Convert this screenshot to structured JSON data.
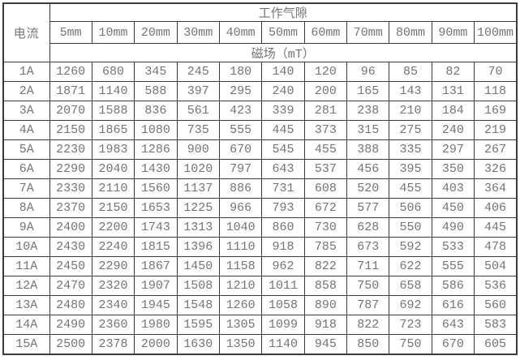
{
  "table": {
    "corner_header": "电流",
    "top_header": "工作气隙",
    "gap_columns": [
      "5mm",
      "10mm",
      "20mm",
      "30mm",
      "40mm",
      "50mm",
      "60mm",
      "70mm",
      "80mm",
      "90mm",
      "100mm"
    ],
    "field_header": "磁场（mT）",
    "rows": [
      {
        "current": "1A",
        "values": [
          1260,
          680,
          345,
          245,
          180,
          140,
          120,
          96,
          85,
          82,
          70
        ]
      },
      {
        "current": "2A",
        "values": [
          1871,
          1140,
          588,
          397,
          295,
          240,
          200,
          165,
          143,
          131,
          118
        ]
      },
      {
        "current": "3A",
        "values": [
          2070,
          1588,
          836,
          561,
          423,
          339,
          281,
          238,
          210,
          184,
          169
        ]
      },
      {
        "current": "4A",
        "values": [
          2150,
          1865,
          1080,
          735,
          555,
          445,
          373,
          315,
          275,
          240,
          219
        ]
      },
      {
        "current": "5A",
        "values": [
          2230,
          1983,
          1286,
          900,
          670,
          545,
          455,
          388,
          335,
          297,
          267
        ]
      },
      {
        "current": "6A",
        "values": [
          2290,
          2040,
          1430,
          1020,
          797,
          643,
          537,
          456,
          395,
          350,
          326
        ]
      },
      {
        "current": "7A",
        "values": [
          2330,
          2110,
          1560,
          1137,
          886,
          731,
          608,
          520,
          455,
          403,
          364
        ]
      },
      {
        "current": "8A",
        "values": [
          2370,
          2150,
          1653,
          1225,
          966,
          793,
          672,
          577,
          506,
          450,
          406
        ]
      },
      {
        "current": "9A",
        "values": [
          2400,
          2200,
          1743,
          1313,
          1040,
          860,
          730,
          628,
          550,
          490,
          445
        ]
      },
      {
        "current": "10A",
        "values": [
          2430,
          2240,
          1815,
          1396,
          1110,
          918,
          785,
          673,
          592,
          533,
          478
        ]
      },
      {
        "current": "11A",
        "values": [
          2450,
          2290,
          1867,
          1450,
          1158,
          962,
          822,
          711,
          622,
          555,
          504
        ]
      },
      {
        "current": "12A",
        "values": [
          2470,
          2320,
          1907,
          1508,
          1210,
          1011,
          858,
          750,
          658,
          586,
          536
        ]
      },
      {
        "current": "13A",
        "values": [
          2480,
          2340,
          1945,
          1548,
          1260,
          1058,
          890,
          787,
          692,
          616,
          560
        ]
      },
      {
        "current": "14A",
        "values": [
          2490,
          2360,
          1980,
          1595,
          1305,
          1099,
          918,
          822,
          723,
          643,
          583
        ]
      },
      {
        "current": "15A",
        "values": [
          2500,
          2378,
          2000,
          1630,
          1350,
          1140,
          945,
          850,
          750,
          670,
          605
        ]
      }
    ]
  },
  "colors": {
    "border": "#3a3a3a",
    "text": "#747474",
    "background": "#ffffff"
  },
  "chart_data": {
    "type": "table",
    "title": "工作气隙 / 磁场（mT）",
    "row_header_label": "电流",
    "columns": [
      "5mm",
      "10mm",
      "20mm",
      "30mm",
      "40mm",
      "50mm",
      "60mm",
      "70mm",
      "80mm",
      "90mm",
      "100mm"
    ],
    "row_labels": [
      "1A",
      "2A",
      "3A",
      "4A",
      "5A",
      "6A",
      "7A",
      "8A",
      "9A",
      "10A",
      "11A",
      "12A",
      "13A",
      "14A",
      "15A"
    ],
    "values": [
      [
        1260,
        680,
        345,
        245,
        180,
        140,
        120,
        96,
        85,
        82,
        70
      ],
      [
        1871,
        1140,
        588,
        397,
        295,
        240,
        200,
        165,
        143,
        131,
        118
      ],
      [
        2070,
        1588,
        836,
        561,
        423,
        339,
        281,
        238,
        210,
        184,
        169
      ],
      [
        2150,
        1865,
        1080,
        735,
        555,
        445,
        373,
        315,
        275,
        240,
        219
      ],
      [
        2230,
        1983,
        1286,
        900,
        670,
        545,
        455,
        388,
        335,
        297,
        267
      ],
      [
        2290,
        2040,
        1430,
        1020,
        797,
        643,
        537,
        456,
        395,
        350,
        326
      ],
      [
        2330,
        2110,
        1560,
        1137,
        886,
        731,
        608,
        520,
        455,
        403,
        364
      ],
      [
        2370,
        2150,
        1653,
        1225,
        966,
        793,
        672,
        577,
        506,
        450,
        406
      ],
      [
        2400,
        2200,
        1743,
        1313,
        1040,
        860,
        730,
        628,
        550,
        490,
        445
      ],
      [
        2430,
        2240,
        1815,
        1396,
        1110,
        918,
        785,
        673,
        592,
        533,
        478
      ],
      [
        2450,
        2290,
        1867,
        1450,
        1158,
        962,
        822,
        711,
        622,
        555,
        504
      ],
      [
        2470,
        2320,
        1907,
        1508,
        1210,
        1011,
        858,
        750,
        658,
        586,
        536
      ],
      [
        2480,
        2340,
        1945,
        1548,
        1260,
        1058,
        890,
        787,
        692,
        616,
        560
      ],
      [
        2490,
        2360,
        1980,
        1595,
        1305,
        1099,
        918,
        822,
        723,
        643,
        583
      ],
      [
        2500,
        2378,
        2000,
        1630,
        1350,
        1140,
        945,
        850,
        750,
        670,
        605
      ]
    ]
  }
}
